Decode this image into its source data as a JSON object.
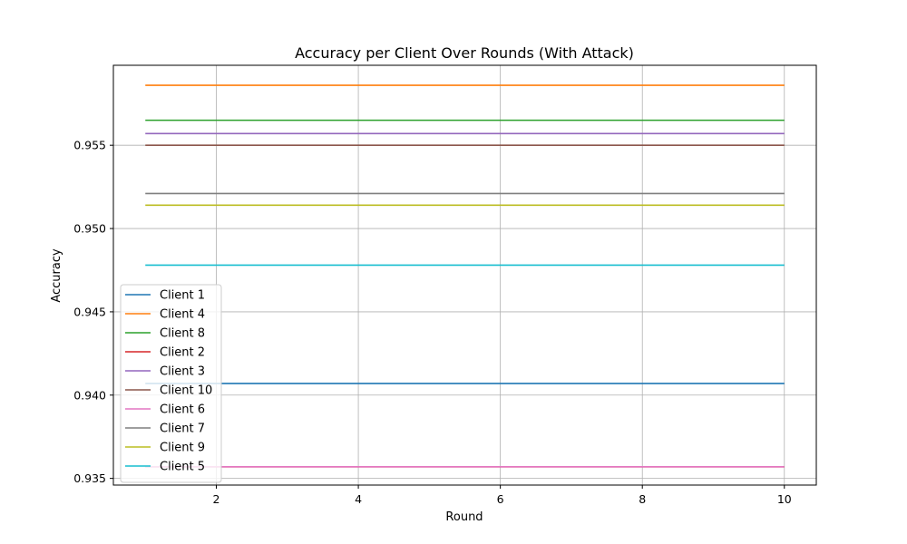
{
  "chart_data": {
    "type": "line",
    "title": "Accuracy per Client Over Rounds (With Attack)",
    "xlabel": "Round",
    "ylabel": "Accuracy",
    "xlim": [
      0.55,
      10.45
    ],
    "ylim": [
      0.9346,
      0.9598
    ],
    "xticks": [
      2,
      4,
      6,
      8,
      10
    ],
    "yticks": [
      0.935,
      0.94,
      0.945,
      0.95,
      0.955
    ],
    "ytick_labels": [
      "0.935",
      "0.940",
      "0.945",
      "0.950",
      "0.955"
    ],
    "grid": true,
    "legend_position": "lower-left",
    "x": [
      1,
      2,
      3,
      4,
      5,
      6,
      7,
      8,
      9,
      10
    ],
    "series": [
      {
        "name": "Client 1",
        "color": "#1f77b4",
        "values": [
          0.9407,
          0.9407,
          0.9407,
          0.9407,
          0.9407,
          0.9407,
          0.9407,
          0.9407,
          0.9407,
          0.9407
        ]
      },
      {
        "name": "Client 4",
        "color": "#ff7f0e",
        "values": [
          0.9586,
          0.9586,
          0.9586,
          0.9586,
          0.9586,
          0.9586,
          0.9586,
          0.9586,
          0.9586,
          0.9586
        ]
      },
      {
        "name": "Client 8",
        "color": "#2ca02c",
        "values": [
          0.9565,
          0.9565,
          0.9565,
          0.9565,
          0.9565,
          0.9565,
          0.9565,
          0.9565,
          0.9565,
          0.9565
        ]
      },
      {
        "name": "Client 2",
        "color": "#d62728",
        "values": [
          0.9357,
          0.9357,
          0.9357,
          0.9357,
          0.9357,
          0.9357,
          0.9357,
          0.9357,
          0.9357,
          0.9357
        ]
      },
      {
        "name": "Client 3",
        "color": "#9467bd",
        "values": [
          0.9557,
          0.9557,
          0.9557,
          0.9557,
          0.9557,
          0.9557,
          0.9557,
          0.9557,
          0.9557,
          0.9557
        ]
      },
      {
        "name": "Client 10",
        "color": "#8c564b",
        "values": [
          0.955,
          0.955,
          0.955,
          0.955,
          0.955,
          0.955,
          0.955,
          0.955,
          0.955,
          0.955
        ]
      },
      {
        "name": "Client 6",
        "color": "#e377c2",
        "values": [
          0.9357,
          0.9357,
          0.9357,
          0.9357,
          0.9357,
          0.9357,
          0.9357,
          0.9357,
          0.9357,
          0.9357
        ]
      },
      {
        "name": "Client 7",
        "color": "#7f7f7f",
        "values": [
          0.9521,
          0.9521,
          0.9521,
          0.9521,
          0.9521,
          0.9521,
          0.9521,
          0.9521,
          0.9521,
          0.9521
        ]
      },
      {
        "name": "Client 9",
        "color": "#bcbd22",
        "values": [
          0.9514,
          0.9514,
          0.9514,
          0.9514,
          0.9514,
          0.9514,
          0.9514,
          0.9514,
          0.9514,
          0.9514
        ]
      },
      {
        "name": "Client 5",
        "color": "#17becf",
        "values": [
          0.9478,
          0.9478,
          0.9478,
          0.9478,
          0.9478,
          0.9478,
          0.9478,
          0.9478,
          0.9478,
          0.9478
        ]
      }
    ]
  }
}
